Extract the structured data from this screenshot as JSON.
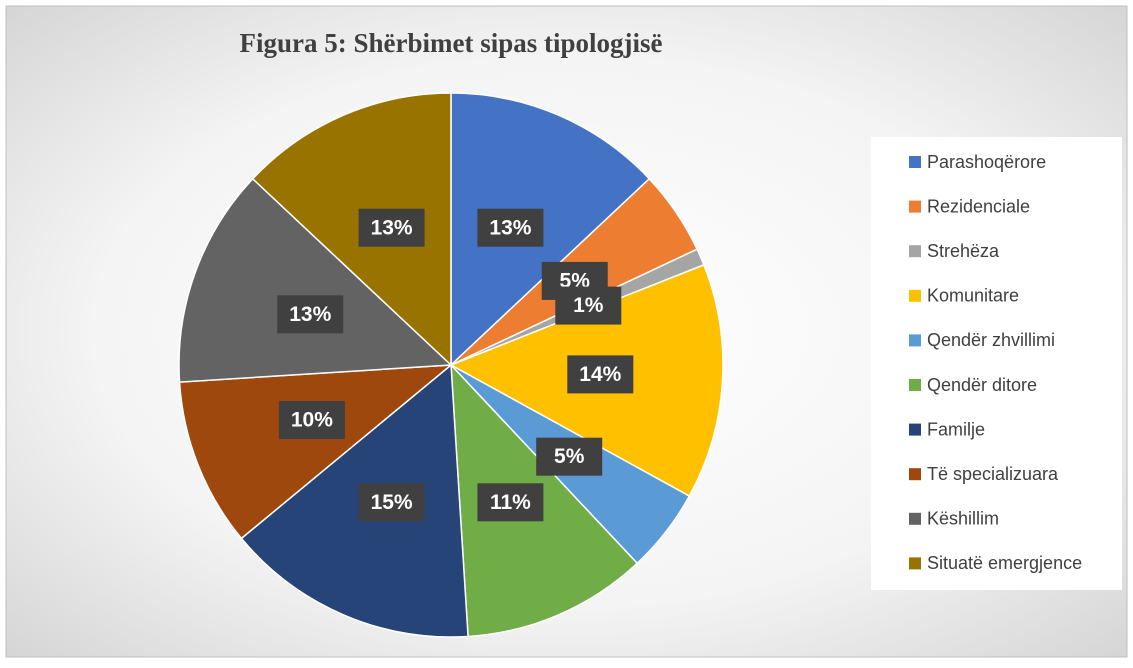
{
  "chart_data": {
    "type": "pie",
    "title": "Figura 5: Shërbimet sipas tipologjisë",
    "categories": [
      "Parashoqërore",
      "Rezidenciale",
      "Strehëza",
      "Komunitare",
      "Qendër zhvillimi",
      "Qendër ditore",
      "Familje",
      "Të specializuara",
      "Këshillim",
      "Situatë emergjence"
    ],
    "values": [
      13,
      5,
      1,
      14,
      5,
      11,
      15,
      10,
      13,
      13
    ],
    "value_labels": [
      "13%",
      "5%",
      "1%",
      "14%",
      "5%",
      "11%",
      "15%",
      "10%",
      "13%",
      "13%"
    ],
    "colors": [
      "#4472c4",
      "#ed7d31",
      "#a5a5a5",
      "#ffc000",
      "#5b9bd5",
      "#70ad47",
      "#264478",
      "#9e480e",
      "#636363",
      "#997300"
    ],
    "legend": "right"
  }
}
